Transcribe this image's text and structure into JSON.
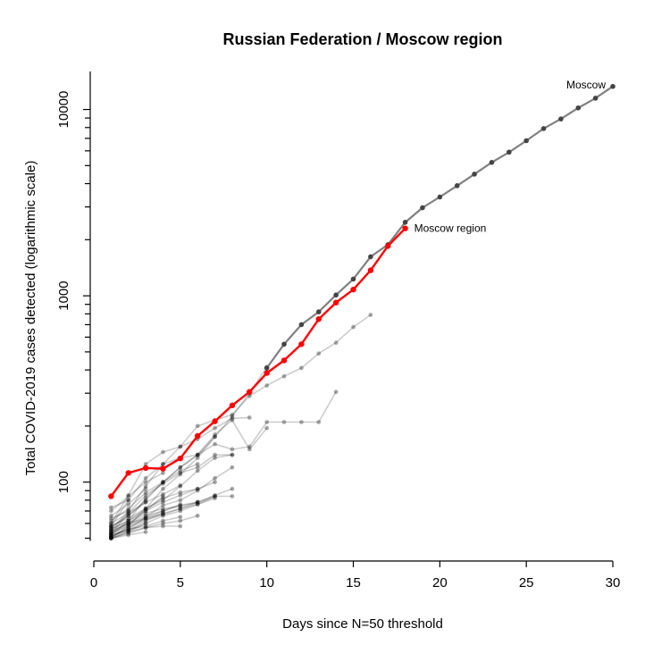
{
  "chart_data": {
    "type": "line",
    "title": "Russian Federation / Moscow region",
    "xlabel": "Days since N=50 threshold",
    "ylabel": "Total COVID-2019 cases detected (logarithmic scale)",
    "xlim": [
      0,
      30
    ],
    "ylim": [
      45,
      16000
    ],
    "y_scale": "log",
    "grid": false,
    "x_ticks": [
      0,
      5,
      10,
      15,
      20,
      25,
      30
    ],
    "y_ticks_labeled": [
      {
        "value": 100,
        "label": "100"
      },
      {
        "value": 1000,
        "label": "1000"
      },
      {
        "value": 10000,
        "label": "10000"
      }
    ],
    "y_ticks_minor": [
      50,
      60,
      70,
      80,
      90,
      200,
      300,
      400,
      500,
      600,
      700,
      800,
      900,
      2000,
      3000,
      4000,
      5000,
      6000,
      7000,
      8000,
      9000
    ],
    "colors": {
      "highlight": "#ff0000",
      "moscow": "#808080",
      "background": "#000000"
    },
    "annotations": [
      {
        "text": "Moscow",
        "x": 30,
        "y": 13000,
        "anchor": "end"
      },
      {
        "text": "Moscow region",
        "x": 18,
        "y": 2300,
        "anchor": "start"
      }
    ],
    "series": [
      {
        "name": "Moscow",
        "role": "moscow",
        "x": [
          10,
          11,
          12,
          13,
          14,
          15,
          16,
          17,
          18,
          19,
          20,
          21,
          22,
          23,
          24,
          25,
          26,
          27,
          28,
          29,
          30
        ],
        "y": [
          410,
          550,
          700,
          820,
          1010,
          1230,
          1620,
          1880,
          2480,
          2970,
          3390,
          3900,
          4500,
          5200,
          5900,
          6800,
          7900,
          8900,
          10200,
          11500,
          13300
        ]
      },
      {
        "name": "Moscow region",
        "role": "highlight",
        "x": [
          1,
          2,
          3,
          4,
          5,
          6,
          7,
          8,
          9,
          10,
          11,
          12,
          13,
          14,
          15,
          16,
          17,
          18
        ],
        "y": [
          84,
          112,
          119,
          118,
          134,
          177,
          212,
          258,
          305,
          385,
          450,
          550,
          750,
          920,
          1080,
          1370,
          1850,
          2300
        ]
      },
      {
        "role": "background",
        "x": [
          1,
          2,
          3,
          4,
          5,
          6,
          7,
          8,
          9,
          10,
          11,
          12,
          13,
          14,
          15,
          16
        ],
        "y": [
          55,
          70,
          95,
          125,
          155,
          200,
          215,
          230,
          290,
          330,
          370,
          410,
          490,
          560,
          680,
          790
        ]
      },
      {
        "role": "background",
        "x": [
          1,
          2,
          3,
          4,
          5,
          6,
          7,
          8,
          9,
          10,
          11,
          12,
          13,
          14
        ],
        "y": [
          52,
          62,
          82,
          100,
          120,
          140,
          160,
          150,
          155,
          210,
          210,
          210,
          210,
          305
        ]
      },
      {
        "role": "background",
        "x": [
          1,
          2,
          3,
          4,
          5,
          6,
          7,
          8,
          9
        ],
        "y": [
          60,
          85,
          125,
          145,
          155,
          170,
          195,
          220,
          222
        ]
      },
      {
        "role": "background",
        "x": [
          1,
          2,
          3,
          4,
          5,
          6,
          7,
          8,
          9,
          10
        ],
        "y": [
          58,
          80,
          105,
          125,
          135,
          140,
          180,
          215,
          150,
          195
        ]
      },
      {
        "role": "background",
        "x": [
          1,
          2,
          3,
          4,
          5,
          6,
          7,
          8
        ],
        "y": [
          53,
          68,
          85,
          98,
          112,
          120,
          140,
          140
        ]
      },
      {
        "role": "background",
        "x": [
          1,
          2,
          3,
          4,
          5,
          6,
          7,
          8,
          9,
          10
        ],
        "y": [
          50,
          58,
          72,
          92,
          110,
          135,
          175,
          225,
          300,
          415
        ]
      },
      {
        "role": "background",
        "x": [
          1,
          2,
          3,
          4,
          5,
          6,
          7,
          8
        ],
        "y": [
          56,
          62,
          72,
          80,
          95,
          115,
          135,
          140
        ]
      },
      {
        "role": "background",
        "x": [
          1,
          2,
          3,
          4,
          5,
          6,
          7,
          8
        ],
        "y": [
          51,
          56,
          65,
          75,
          80,
          90,
          105,
          120
        ]
      },
      {
        "role": "background",
        "x": [
          1,
          2,
          3,
          4,
          5,
          6,
          7
        ],
        "y": [
          54,
          60,
          70,
          78,
          85,
          92,
          100
        ]
      },
      {
        "role": "background",
        "x": [
          1,
          2,
          3,
          4,
          5,
          6,
          7,
          8
        ],
        "y": [
          52,
          55,
          62,
          68,
          72,
          78,
          85,
          92
        ]
      },
      {
        "role": "background",
        "x": [
          1,
          2,
          3,
          4,
          5,
          6,
          7
        ],
        "y": [
          50,
          54,
          60,
          66,
          70,
          76,
          82
        ]
      },
      {
        "role": "background",
        "x": [
          1,
          2,
          3,
          4,
          5,
          6,
          7
        ],
        "y": [
          57,
          66,
          80,
          100,
          120,
          140,
          175
        ]
      },
      {
        "role": "background",
        "x": [
          1,
          2,
          3,
          4,
          5,
          6,
          7,
          8
        ],
        "y": [
          53,
          59,
          66,
          70,
          75,
          78,
          84,
          84
        ]
      },
      {
        "role": "background",
        "x": [
          1,
          2,
          3,
          4,
          5,
          6
        ],
        "y": [
          50,
          53,
          57,
          60,
          62,
          66
        ]
      },
      {
        "role": "background",
        "x": [
          1,
          2,
          3,
          4,
          5,
          6
        ],
        "y": [
          55,
          60,
          68,
          72,
          74,
          78
        ]
      },
      {
        "role": "background",
        "x": [
          1,
          2,
          3,
          4,
          5,
          6,
          7
        ],
        "y": [
          51,
          57,
          63,
          67,
          72,
          76,
          84
        ]
      },
      {
        "role": "background",
        "x": [
          1,
          2,
          3,
          4,
          5,
          6
        ],
        "y": [
          58,
          64,
          72,
          82,
          88,
          92
        ]
      },
      {
        "role": "background",
        "x": [
          1,
          2,
          3,
          4,
          5
        ],
        "y": [
          52,
          56,
          58,
          62,
          65
        ]
      },
      {
        "role": "background",
        "x": [
          1,
          2,
          3,
          4,
          5
        ],
        "y": [
          60,
          68,
          78,
          86,
          96
        ]
      },
      {
        "role": "background",
        "x": [
          1,
          2,
          3,
          4,
          5
        ],
        "y": [
          54,
          60,
          64,
          70,
          76
        ]
      },
      {
        "role": "background",
        "x": [
          1,
          2,
          3,
          4,
          5
        ],
        "y": [
          50,
          54,
          57,
          58,
          58
        ]
      },
      {
        "role": "background",
        "x": [
          1,
          2,
          3,
          4,
          5,
          6
        ],
        "y": [
          62,
          72,
          88,
          100,
          115,
          125
        ]
      },
      {
        "role": "background",
        "x": [
          1,
          2,
          3,
          4
        ],
        "y": [
          56,
          62,
          70,
          84
        ]
      },
      {
        "role": "background",
        "x": [
          1,
          2,
          3,
          4
        ],
        "y": [
          53,
          58,
          64,
          68
        ]
      },
      {
        "role": "background",
        "x": [
          1,
          2,
          3
        ],
        "y": [
          58,
          66,
          78
        ]
      },
      {
        "role": "background",
        "x": [
          1,
          2,
          3
        ],
        "y": [
          51,
          55,
          60
        ]
      },
      {
        "role": "background",
        "x": [
          1,
          2,
          3
        ],
        "y": [
          66,
          76,
          92
        ]
      },
      {
        "role": "background",
        "x": [
          1,
          2,
          3,
          4
        ],
        "y": [
          70,
          84,
          100,
          112
        ]
      },
      {
        "role": "background",
        "x": [
          1,
          2
        ],
        "y": [
          64,
          70
        ]
      },
      {
        "role": "background",
        "x": [
          1,
          2
        ],
        "y": [
          73,
          80
        ]
      },
      {
        "role": "background",
        "x": [
          1,
          2,
          3
        ],
        "y": [
          50,
          52,
          54
        ]
      }
    ]
  }
}
